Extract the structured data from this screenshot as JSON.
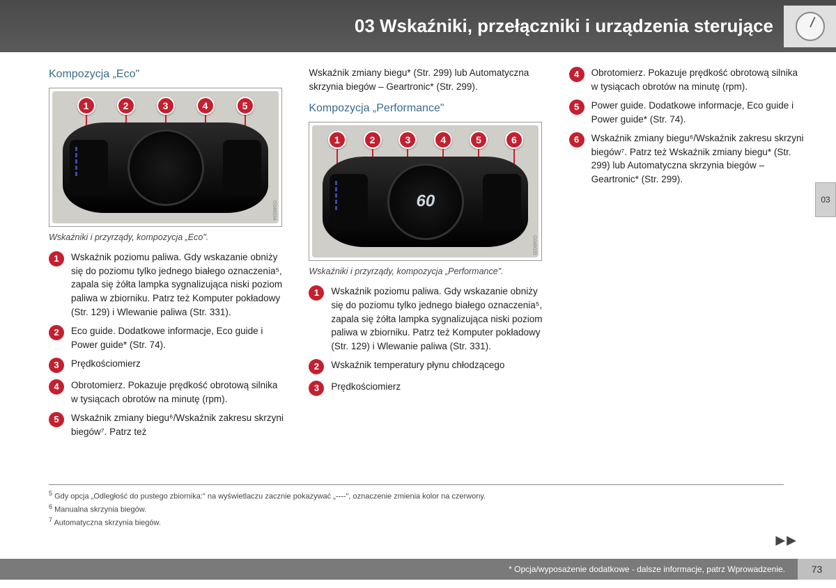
{
  "header": {
    "title": "03 Wskaźniki, przełączniki i urządzenia sterujące"
  },
  "side_tab": "03",
  "col1": {
    "title": "Kompozycja „Eco\"",
    "callouts": [
      "1",
      "2",
      "3",
      "4",
      "5"
    ],
    "img_code": "G046034",
    "caption": "Wskaźniki i przyrządy, kompozycja „Eco\".",
    "items": [
      {
        "n": "1",
        "t": "Wskaźnik poziomu paliwa. Gdy wskazanie obniży się do poziomu tylko jednego białego oznaczenia⁵, zapala się żółta lampka sygnalizująca niski poziom paliwa w zbiorniku. Patrz też Komputer pokładowy (Str. 129) i Wlewanie paliwa (Str. 331)."
      },
      {
        "n": "2",
        "t": "Eco guide. Dodatkowe informacje, Eco guide i Power guide* (Str. 74)."
      },
      {
        "n": "3",
        "t": "Prędkościomierz"
      },
      {
        "n": "4",
        "t": "Obrotomierz. Pokazuje prędkość obrotową silnika w tysiącach obrotów na minutę (rpm)."
      },
      {
        "n": "5",
        "t": "Wskaźnik zmiany biegu⁶/Wskaźnik zakresu skrzyni biegów⁷. Patrz też"
      }
    ]
  },
  "col2": {
    "cont": "Wskaźnik zmiany biegu* (Str. 299) lub Automatyczna skrzynia biegów – Geartronic* (Str. 299).",
    "title": "Kompozycja „Performance\"",
    "callouts": [
      "1",
      "2",
      "3",
      "4",
      "5",
      "6"
    ],
    "speed": "60",
    "img_code": "G046035",
    "caption": "Wskaźniki i przyrządy, kompozycja „Performance\".",
    "items": [
      {
        "n": "1",
        "t": "Wskaźnik poziomu paliwa. Gdy wskazanie obniży się do poziomu tylko jednego białego oznaczenia⁵, zapala się żółta lampka sygnalizująca niski poziom paliwa w zbiorniku. Patrz też Komputer pokładowy (Str. 129) i Wlewanie paliwa (Str. 331)."
      },
      {
        "n": "2",
        "t": "Wskaźnik temperatury płynu chłodzącego"
      },
      {
        "n": "3",
        "t": "Prędkościomierz"
      }
    ]
  },
  "col3": {
    "items": [
      {
        "n": "4",
        "t": "Obrotomierz. Pokazuje prędkość obrotową silnika w tysiącach obrotów na minutę (rpm)."
      },
      {
        "n": "5",
        "t": "Power guide. Dodatkowe informacje, Eco guide i Power guide* (Str. 74)."
      },
      {
        "n": "6",
        "t": "Wskaźnik zmiany biegu⁶/Wskaźnik zakresu skrzyni biegów⁷. Patrz też Wskaźnik zmiany biegu* (Str. 299) lub Automatyczna skrzynia biegów – Geartronic* (Str. 299)."
      }
    ]
  },
  "footnotes": {
    "f5": "Gdy opcja „Odległość do pustego zbiornika:\" na wyświetlaczu zacznie pokazywać „----\", oznaczenie zmienia kolor na czerwony.",
    "f6": "Manualna skrzynia biegów.",
    "f7": "Automatyczna skrzynia biegów."
  },
  "continue_marks": "▶▶",
  "footer": {
    "text": "* Opcja/wyposażenie dodatkowe - dalsze informacje, patrz Wprowadzenie.",
    "page": "73"
  }
}
